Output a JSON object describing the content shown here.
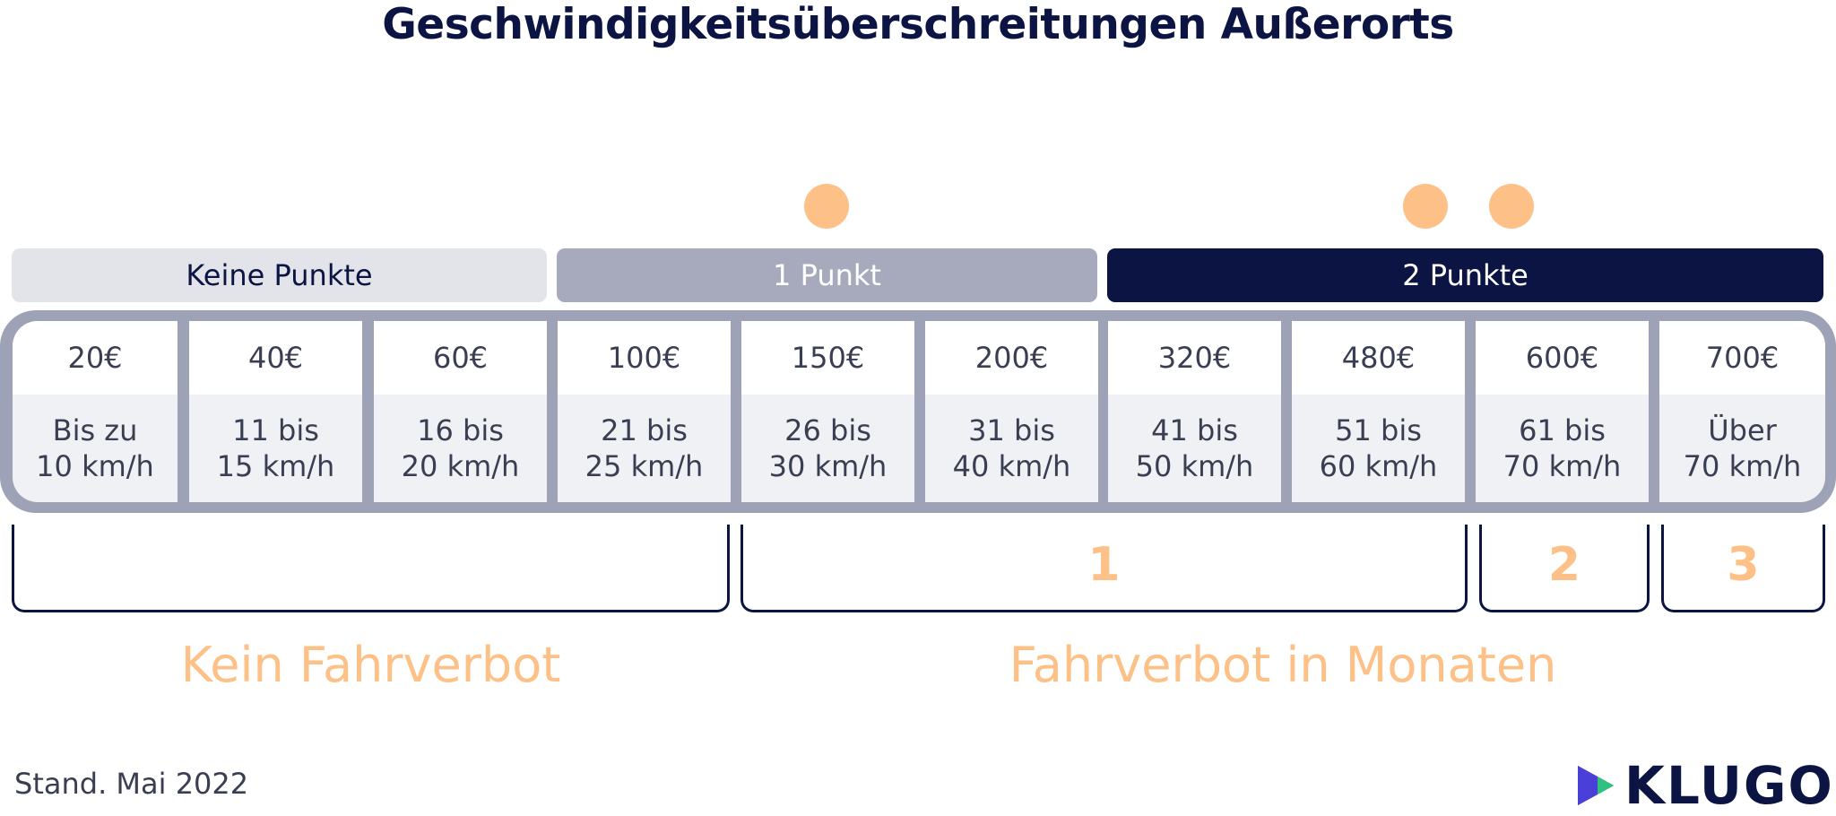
{
  "title": "Geschwindigkeitsüberschreitungen Außerorts",
  "point_bands": [
    "Keine Punkte",
    "1 Punkt",
    "2 Punkte"
  ],
  "columns": [
    {
      "fine": "20€",
      "speed_line1": "Bis zu",
      "speed_line2": "10 km/h"
    },
    {
      "fine": "40€",
      "speed_line1": "11 bis",
      "speed_line2": "15 km/h"
    },
    {
      "fine": "60€",
      "speed_line1": "16 bis",
      "speed_line2": "20 km/h"
    },
    {
      "fine": "100€",
      "speed_line1": "21 bis",
      "speed_line2": "25 km/h"
    },
    {
      "fine": "150€",
      "speed_line1": "26 bis",
      "speed_line2": "30 km/h"
    },
    {
      "fine": "200€",
      "speed_line1": "31 bis",
      "speed_line2": "40 km/h"
    },
    {
      "fine": "320€",
      "speed_line1": "41 bis",
      "speed_line2": "50 km/h"
    },
    {
      "fine": "480€",
      "speed_line1": "51 bis",
      "speed_line2": "60 km/h"
    },
    {
      "fine": "600€",
      "speed_line1": "61 bis",
      "speed_line2": "70 km/h"
    },
    {
      "fine": "700€",
      "speed_line1": "Über",
      "speed_line2": "70 km/h"
    }
  ],
  "ban_months": [
    "1",
    "2",
    "3"
  ],
  "labels": {
    "no_ban": "Kein Fahrverbot",
    "ban": "Fahrverbot in Monaten"
  },
  "footer": {
    "stand": "Stand. Mai 2022"
  },
  "logo": {
    "text": "KLUGO"
  },
  "colors": {
    "navy": "#0b1442",
    "peach": "#fdc086",
    "gray": "#a6aabc",
    "light": "#e2e4ea"
  }
}
